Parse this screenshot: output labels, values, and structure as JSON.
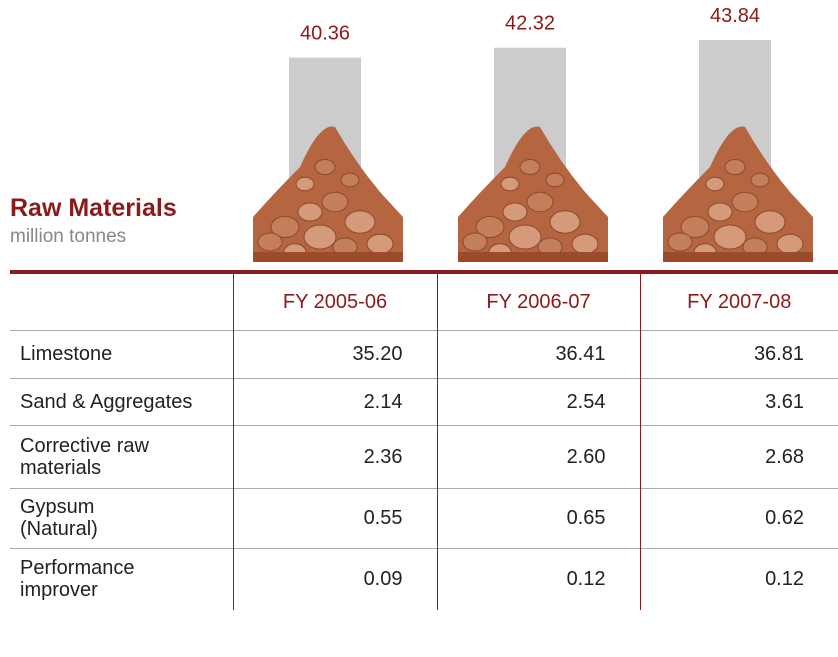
{
  "chart_data": {
    "type": "bar",
    "title": "Raw Materials",
    "subtitle": "million tonnes",
    "categories": [
      "FY 2005-06",
      "FY 2006-07",
      "FY 2007-08"
    ],
    "values": [
      40.36,
      42.32,
      43.84
    ],
    "color": "#cccccc",
    "label_color": "#8b1a1a"
  },
  "table": {
    "rows": [
      [
        "Limestone",
        "35.20",
        "36.41",
        "36.81"
      ],
      [
        "Sand & Aggregates",
        "2.14",
        "2.54",
        "3.61"
      ],
      [
        "Corrective raw\nmaterials",
        "2.36",
        "2.60",
        "2.68"
      ],
      [
        "Gypsum\n(Natural)",
        "0.55",
        "0.65",
        "0.62"
      ],
      [
        "Performance\nimprover",
        "0.09",
        "0.12",
        "0.12"
      ]
    ]
  }
}
